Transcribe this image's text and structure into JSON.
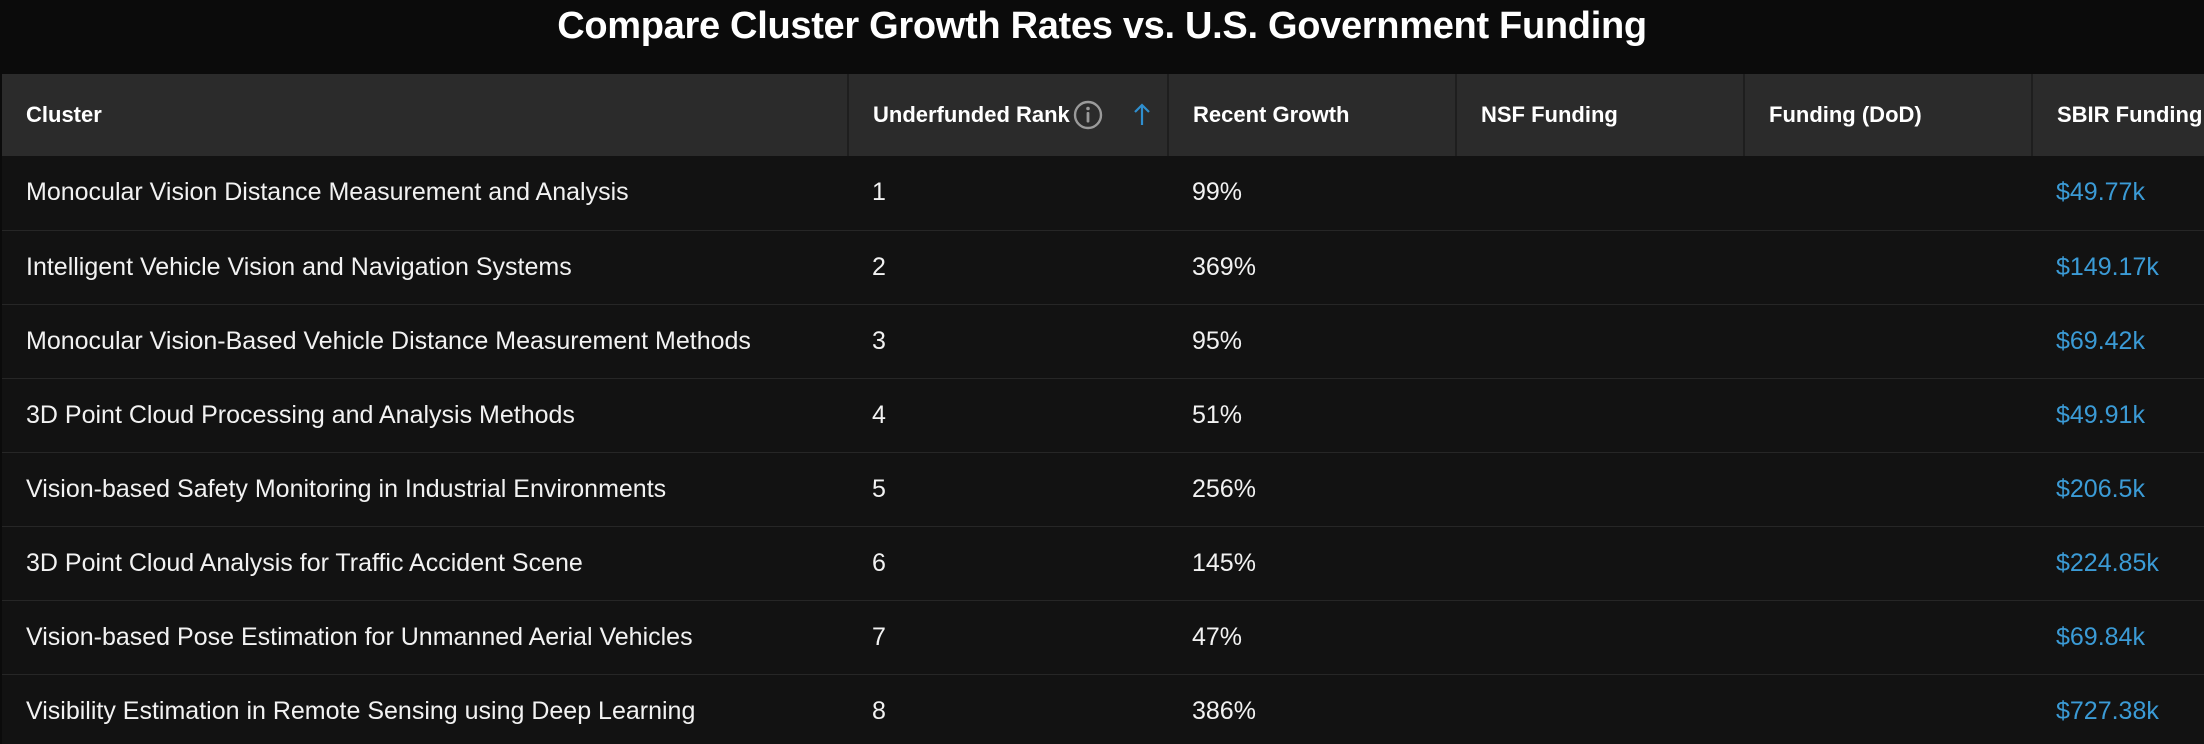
{
  "page": {
    "title": "Compare Cluster Growth Rates vs. U.S. Government Funding"
  },
  "table": {
    "headers": {
      "cluster": "Cluster",
      "rank": "Underfunded Rank",
      "growth": "Recent Growth",
      "nsf": "NSF Funding",
      "dod": "Funding (DoD)",
      "sbir": "SBIR Funding"
    },
    "sort": {
      "column": "rank",
      "direction": "ascending",
      "icon": "arrow-up-icon"
    },
    "rows": [
      {
        "cluster": "Monocular Vision Distance Measurement and Analysis",
        "rank": "1",
        "growth": "99%",
        "nsf": "",
        "dod": "",
        "sbir": "$49.77k"
      },
      {
        "cluster": "Intelligent Vehicle Vision and Navigation Systems",
        "rank": "2",
        "growth": "369%",
        "nsf": "",
        "dod": "",
        "sbir": "$149.17k"
      },
      {
        "cluster": "Monocular Vision-Based Vehicle Distance Measurement Methods",
        "rank": "3",
        "growth": "95%",
        "nsf": "",
        "dod": "",
        "sbir": "$69.42k"
      },
      {
        "cluster": "3D Point Cloud Processing and Analysis Methods",
        "rank": "4",
        "growth": "51%",
        "nsf": "",
        "dod": "",
        "sbir": "$49.91k"
      },
      {
        "cluster": "Vision-based Safety Monitoring in Industrial Environments",
        "rank": "5",
        "growth": "256%",
        "nsf": "",
        "dod": "",
        "sbir": "$206.5k"
      },
      {
        "cluster": "3D Point Cloud Analysis for Traffic Accident Scene",
        "rank": "6",
        "growth": "145%",
        "nsf": "",
        "dod": "",
        "sbir": "$224.85k"
      },
      {
        "cluster": "Vision-based Pose Estimation for Unmanned Aerial Vehicles",
        "rank": "7",
        "growth": "47%",
        "nsf": "",
        "dod": "",
        "sbir": "$69.84k"
      },
      {
        "cluster": "Visibility Estimation in Remote Sensing using Deep Learning",
        "rank": "8",
        "growth": "386%",
        "nsf": "",
        "dod": "",
        "sbir": "$727.38k"
      }
    ]
  },
  "colors": {
    "background": "#0b0b0b",
    "header_bg": "#2b2b2b",
    "row_bg": "#121212",
    "link": "#3b9bd6",
    "sort_arrow": "#2f8fcf",
    "info_icon": "#9a9a9a"
  }
}
